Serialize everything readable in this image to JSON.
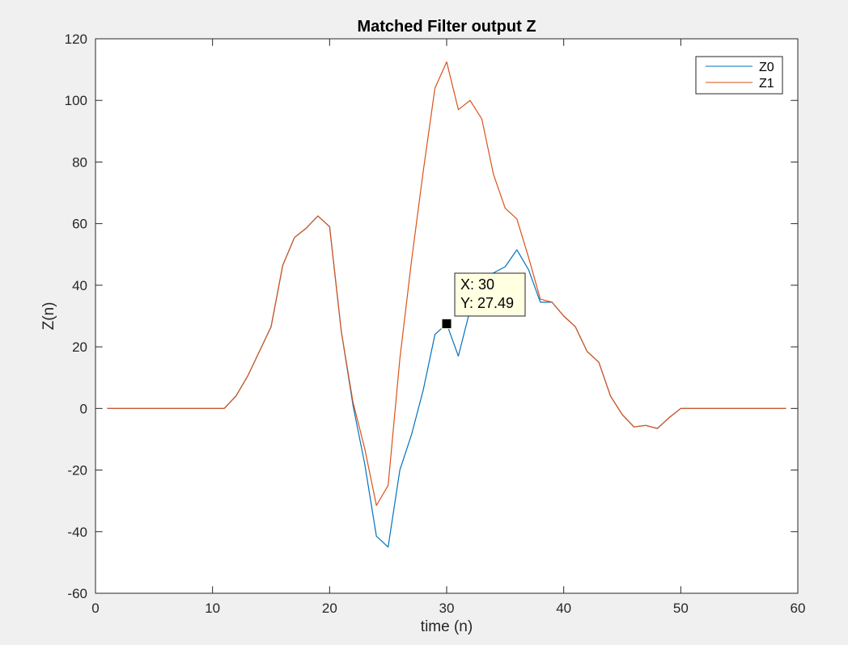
{
  "chart_data": {
    "type": "line",
    "title": "Matched Filter output Z",
    "xlabel": "time (n)",
    "ylabel": "Z(n)",
    "xlim": [
      0,
      60
    ],
    "ylim": [
      -60,
      120
    ],
    "xticks": [
      0,
      10,
      20,
      30,
      40,
      50,
      60
    ],
    "yticks": [
      -60,
      -40,
      -20,
      0,
      20,
      40,
      60,
      80,
      100,
      120
    ],
    "grid": false,
    "legend_position": "top-right",
    "series": [
      {
        "name": "Z0",
        "color": "#0072bd",
        "x": [
          1,
          2,
          3,
          4,
          5,
          6,
          7,
          8,
          9,
          10,
          11,
          12,
          13,
          14,
          15,
          16,
          17,
          18,
          19,
          20,
          21,
          22,
          23,
          24,
          25,
          26,
          27,
          28,
          29,
          30,
          31,
          32,
          33,
          34,
          35,
          36,
          37,
          38,
          39,
          40,
          41,
          42,
          43,
          44,
          45,
          46,
          47,
          48,
          49,
          50,
          51,
          52,
          53,
          54,
          55,
          56,
          57,
          58,
          59
        ],
        "values": [
          0,
          0,
          0,
          0,
          0,
          0,
          0,
          0,
          0,
          0,
          0,
          4,
          10.5,
          18.5,
          26.5,
          46.5,
          55.5,
          58.5,
          62.5,
          59,
          25,
          1,
          -18,
          -41.5,
          -45,
          -20,
          -8.5,
          6,
          24,
          27.49,
          17,
          32,
          39,
          44,
          46,
          51.5,
          45,
          34.5,
          34.5,
          30,
          26.5,
          18.5,
          15,
          4,
          -2,
          -6,
          -5.5,
          -6.5,
          -3,
          0,
          0,
          0,
          0,
          0,
          0,
          0,
          0,
          0,
          0
        ]
      },
      {
        "name": "Z1",
        "color": "#d95319",
        "x": [
          1,
          2,
          3,
          4,
          5,
          6,
          7,
          8,
          9,
          10,
          11,
          12,
          13,
          14,
          15,
          16,
          17,
          18,
          19,
          20,
          21,
          22,
          23,
          24,
          25,
          26,
          27,
          28,
          29,
          30,
          31,
          32,
          33,
          34,
          35,
          36,
          37,
          38,
          39,
          40,
          41,
          42,
          43,
          44,
          45,
          46,
          47,
          48,
          49,
          50,
          51,
          52,
          53,
          54,
          55,
          56,
          57,
          58,
          59
        ],
        "values": [
          0,
          0,
          0,
          0,
          0,
          0,
          0,
          0,
          0,
          0,
          0,
          4,
          10.5,
          18.5,
          26.5,
          46.5,
          55.5,
          58.5,
          62.5,
          59,
          25,
          2,
          -13,
          -31.5,
          -25,
          16,
          48,
          77,
          104,
          112.5,
          97,
          100,
          94,
          76,
          65,
          61.5,
          49,
          35.5,
          34.5,
          30,
          26.5,
          18.5,
          15,
          4,
          -2,
          -6,
          -5.5,
          -6.5,
          -3,
          0,
          0,
          0,
          0,
          0,
          0,
          0,
          0,
          0,
          0
        ]
      }
    ],
    "datatip": {
      "x": 30,
      "y": 27.49,
      "line1": "X: 30",
      "line2": "Y: 27.49"
    }
  }
}
